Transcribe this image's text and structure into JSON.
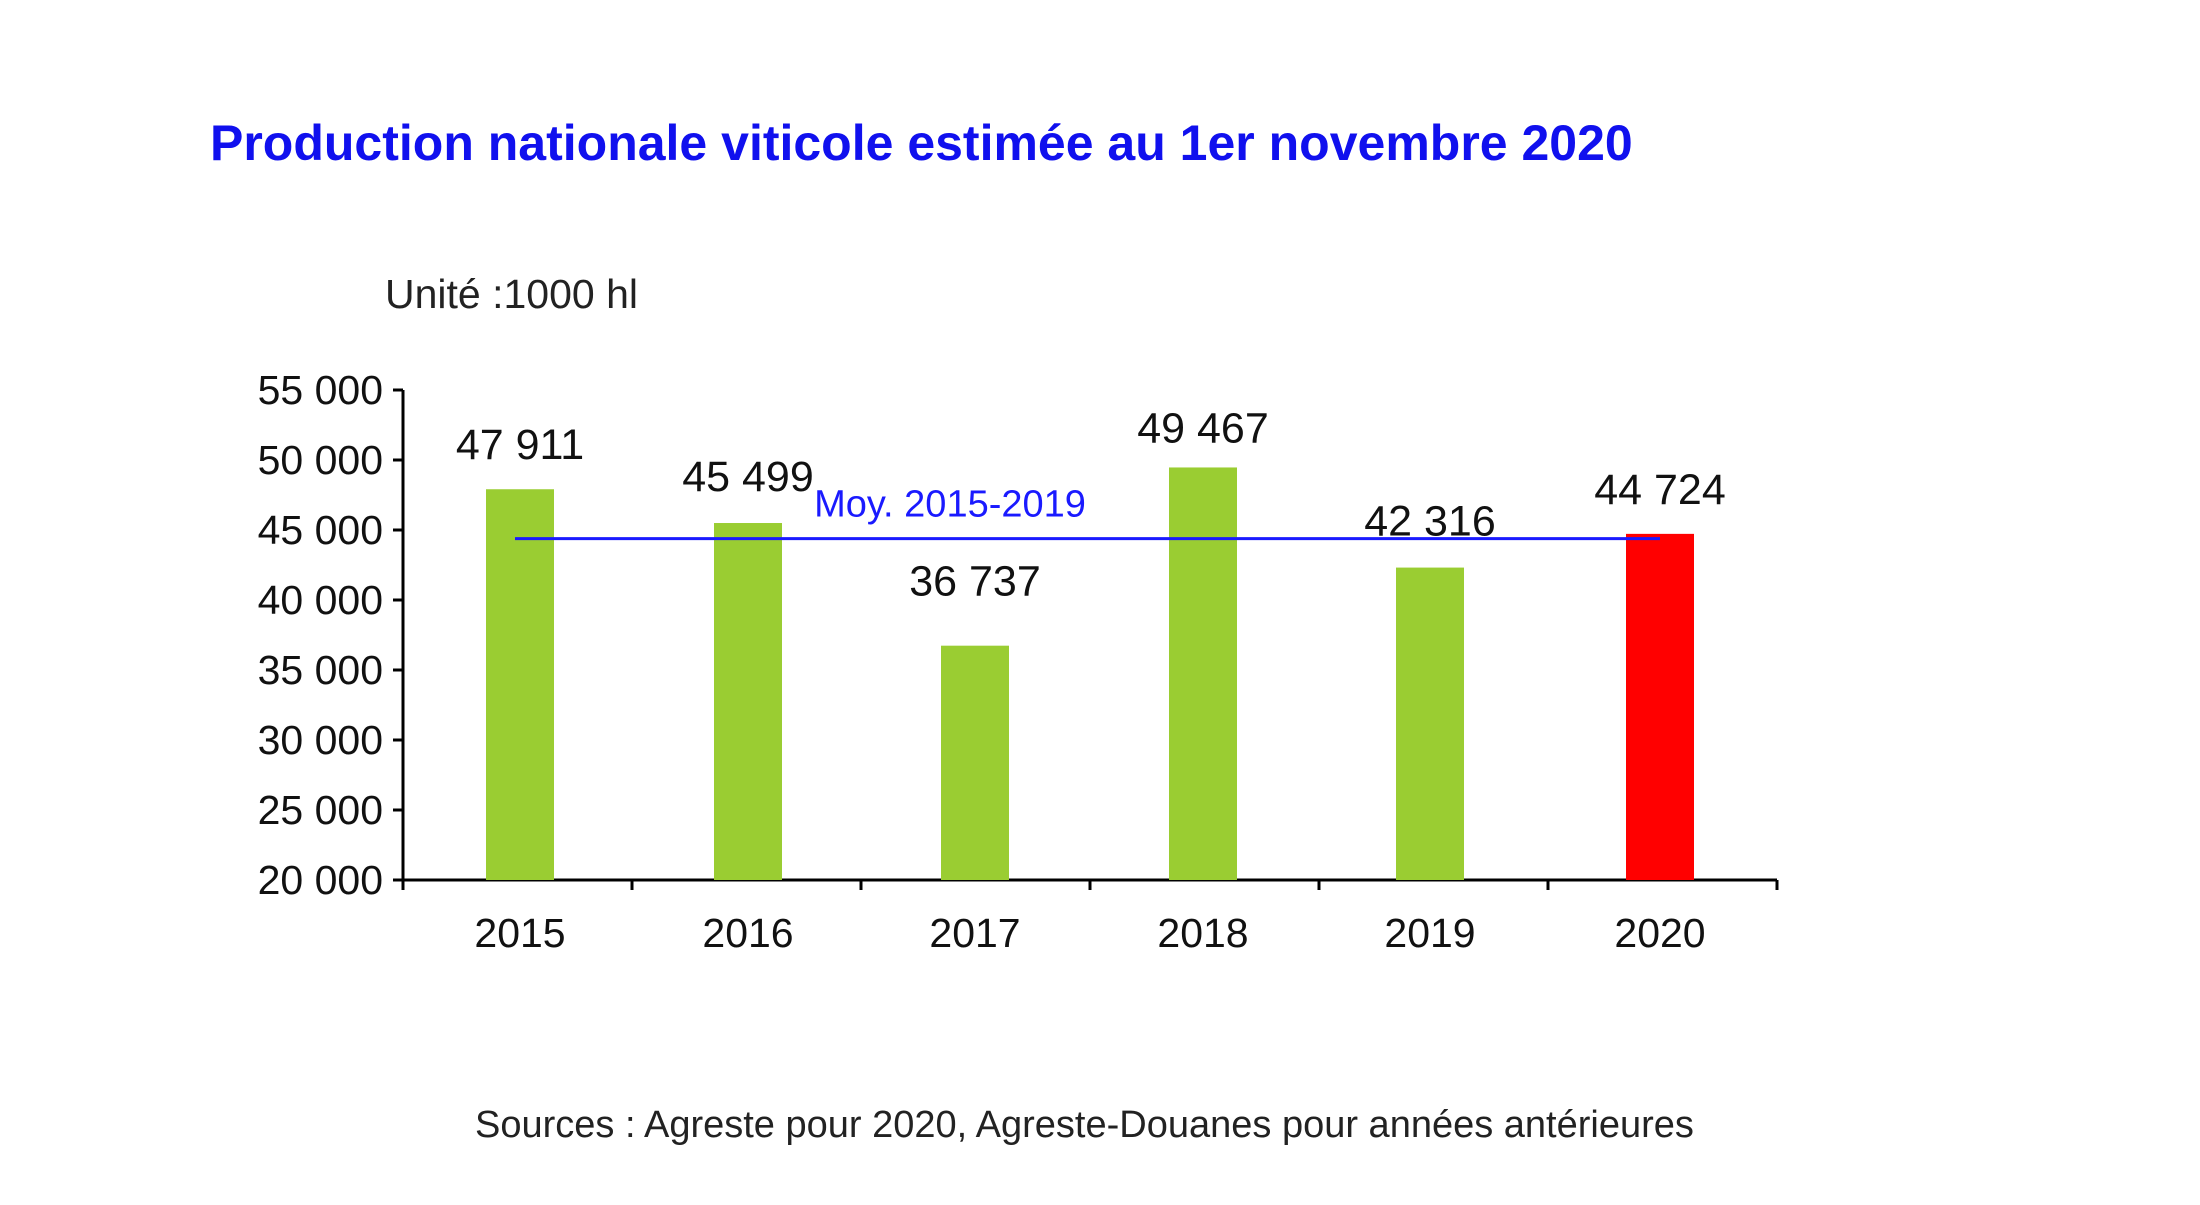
{
  "chart_data": {
    "type": "bar",
    "title": "Production nationale viticole estimée au 1er novembre 2020",
    "unit_label": "Unité :1000 hl",
    "categories": [
      "2015",
      "2016",
      "2017",
      "2018",
      "2019",
      "2020"
    ],
    "values": [
      47911,
      45499,
      36737,
      49467,
      42316,
      44724
    ],
    "value_labels": [
      "47 911",
      "45 499",
      "36 737",
      "49 467",
      "42 316",
      "44 724"
    ],
    "ylim": [
      20000,
      55000
    ],
    "yticks": [
      20000,
      25000,
      30000,
      35000,
      40000,
      45000,
      50000,
      55000
    ],
    "ytick_labels": [
      "20 000",
      "25 000",
      "30 000",
      "35 000",
      "40 000",
      "45 000",
      "50 000",
      "55 000"
    ],
    "average": {
      "label": "Moy. 2015-2019",
      "value": 44386
    },
    "source": "Sources : Agreste pour 2020, Agreste-Douanes pour années antérieures",
    "grid": false,
    "colors": {
      "bar": "#9acd32",
      "highlight_bar": "#ff0000",
      "average_line": "#1a1aff",
      "title": "#1010ee",
      "axis": "#000000"
    },
    "highlight_index": 5
  }
}
